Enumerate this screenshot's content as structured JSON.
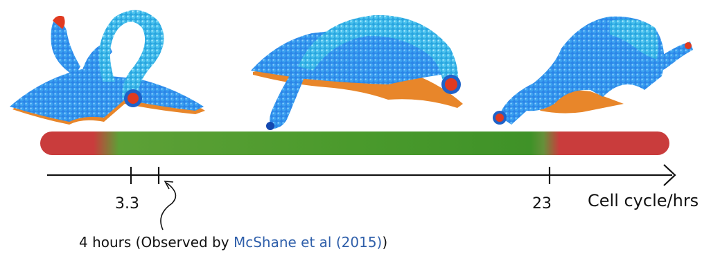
{
  "timeline": {
    "tick_labels": [
      "3.3",
      "23"
    ],
    "axis_label": "Cell cycle/hrs"
  },
  "annotation": {
    "prefix": "4 hours (Observed by ",
    "reference": "McShane et al (2015)",
    "suffix": ")"
  },
  "colors": {
    "phase_red": "#c93c3c",
    "phase_green": "#4a9a2c",
    "cell_blue": "#1e78e6",
    "cell_light_blue": "#3ab5e8",
    "underside_orange": "#f0a030",
    "tip_red": "#e03a20",
    "reference_link": "#2f5faa"
  },
  "shapes": [
    {
      "name": "loop-shaped-cell-model"
    },
    {
      "name": "arched-cell-model"
    },
    {
      "name": "hump-shaped-cell-model"
    }
  ]
}
